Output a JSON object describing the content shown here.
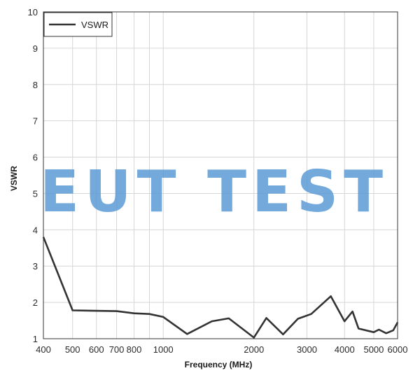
{
  "chart_data": {
    "type": "line",
    "xlabel": "Frequency (MHz)",
    "ylabel": "VSWR",
    "x_scale": "log",
    "xlim": [
      400,
      6000
    ],
    "ylim": [
      1,
      10
    ],
    "grid": true,
    "legend_position": "top-left",
    "x_ticks": [
      400,
      500,
      600,
      700,
      800,
      1000,
      2000,
      3000,
      4000,
      5000,
      6000
    ],
    "x_tick_labels": [
      "400",
      "500",
      "600",
      "700",
      "800",
      "1000",
      "2000",
      "3000",
      "4000",
      "5000",
      "6000"
    ],
    "y_ticks": [
      1,
      2,
      3,
      4,
      5,
      6,
      7,
      8,
      9,
      10
    ],
    "y_tick_labels": [
      "1",
      "2",
      "3",
      "4",
      "5",
      "6",
      "7",
      "8",
      "9",
      "10"
    ],
    "series": [
      {
        "name": "VSWR",
        "color": "#333333",
        "x": [
          400,
          500,
          700,
          800,
          900,
          1000,
          1200,
          1450,
          1650,
          2000,
          2200,
          2500,
          2800,
          3100,
          3600,
          4000,
          4250,
          4450,
          5000,
          5200,
          5500,
          5800,
          6000
        ],
        "y": [
          3.8,
          1.78,
          1.76,
          1.7,
          1.68,
          1.6,
          1.13,
          1.48,
          1.56,
          1.03,
          1.57,
          1.12,
          1.55,
          1.68,
          2.17,
          1.48,
          1.75,
          1.28,
          1.18,
          1.25,
          1.15,
          1.23,
          1.45
        ]
      }
    ]
  },
  "watermark": "EUT TEST"
}
